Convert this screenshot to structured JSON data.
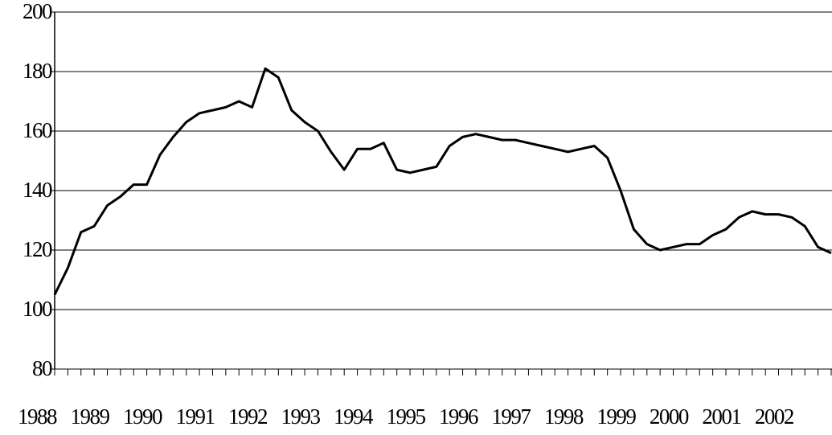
{
  "chart_data": {
    "type": "line",
    "categories": [
      "1988",
      null,
      null,
      null,
      "1989",
      null,
      null,
      null,
      "1990",
      null,
      null,
      null,
      "1991",
      null,
      null,
      null,
      "1992",
      null,
      null,
      null,
      "1993",
      null,
      null,
      null,
      "1994",
      null,
      null,
      null,
      "1995",
      null,
      null,
      null,
      "1996",
      null,
      null,
      null,
      "1997",
      null,
      null,
      null,
      "1998",
      null,
      null,
      null,
      "1999",
      null,
      null,
      null,
      "2000",
      null,
      null,
      null,
      "2001",
      null,
      null,
      null,
      "2002",
      null,
      null,
      null
    ],
    "values": [
      105,
      114,
      126,
      128,
      135,
      138,
      142,
      142,
      152,
      158,
      163,
      166,
      167,
      168,
      170,
      168,
      181,
      178,
      167,
      163,
      160,
      153,
      147,
      154,
      154,
      156,
      147,
      146,
      147,
      148,
      155,
      158,
      159,
      158,
      157,
      157,
      156,
      155,
      154,
      153,
      154,
      155,
      151,
      140,
      127,
      122,
      120,
      121,
      122,
      122,
      125,
      127,
      131,
      133,
      132,
      132,
      131,
      128,
      121,
      119
    ],
    "color": "#000000",
    "ylim": [
      80,
      200
    ],
    "yticks": [
      80,
      100,
      120,
      140,
      160,
      180,
      200
    ],
    "grid": true
  }
}
